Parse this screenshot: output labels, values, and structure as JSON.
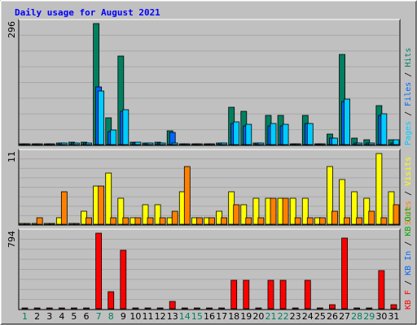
{
  "chart_data": {
    "type": "bar",
    "title": "Daily usage for August 2021",
    "x": [
      "1",
      "2",
      "3",
      "4",
      "5",
      "6",
      "7",
      "8",
      "9",
      "10",
      "11",
      "12",
      "13",
      "14",
      "15",
      "16",
      "17",
      "18",
      "19",
      "20",
      "21",
      "22",
      "23",
      "24",
      "25",
      "26",
      "27",
      "28",
      "29",
      "30",
      "31"
    ],
    "weekend_days": [
      "1",
      "7",
      "8",
      "14",
      "15",
      "21",
      "22",
      "28",
      "29"
    ],
    "panels": [
      {
        "name": "hits-files-pages",
        "ymax_label": "296",
        "ymax": 296,
        "legend": [
          {
            "text": "Pages",
            "color": "#00ccff"
          },
          {
            "text": " / ",
            "color": "#000000"
          },
          {
            "text": "Files",
            "color": "#0066ff"
          },
          {
            "text": " / ",
            "color": "#000000"
          },
          {
            "text": "Hits",
            "color": "#008060"
          }
        ],
        "series": [
          {
            "name": "Hits",
            "color": "#008060",
            "values": [
              1,
              1,
              1,
              4,
              6,
              6,
              296,
              66,
              216,
              6,
              4,
              6,
              33,
              1,
              1,
              1,
              4,
              91,
              81,
              4,
              71,
              71,
              1,
              71,
              1,
              26,
              221,
              16,
              11,
              96,
              11
            ]
          },
          {
            "name": "Files",
            "color": "#0066ff",
            "values": [
              0,
              0,
              0,
              4,
              4,
              4,
              141,
              31,
              81,
              4,
              4,
              4,
              29,
              0,
              0,
              0,
              4,
              51,
              46,
              4,
              46,
              46,
              0,
              51,
              0,
              16,
              106,
              4,
              4,
              71,
              4
            ]
          },
          {
            "name": "Pages",
            "color": "#00ccff",
            "values": [
              0,
              0,
              0,
              4,
              4,
              4,
              131,
              36,
              86,
              6,
              4,
              4,
              4,
              0,
              0,
              0,
              4,
              56,
              49,
              4,
              51,
              49,
              0,
              51,
              0,
              16,
              111,
              4,
              4,
              76,
              11
            ]
          }
        ]
      },
      {
        "name": "visits-sites",
        "ymax_label": "11",
        "ymax": 11,
        "legend": [
          {
            "text": "Sites",
            "color": "#ff8000"
          },
          {
            "text": " / ",
            "color": "#000000"
          },
          {
            "text": "Visits",
            "color": "#ffff00"
          }
        ],
        "series": [
          {
            "name": "Visits",
            "color": "#ffff00",
            "values": [
              0,
              0,
              0,
              1,
              0,
              2,
              6,
              8,
              4,
              1,
              3,
              3,
              1,
              5,
              1,
              1,
              2,
              5,
              3,
              4,
              4,
              4,
              4,
              4,
              1,
              9,
              7,
              5,
              4,
              11,
              5
            ]
          },
          {
            "name": "Sites",
            "color": "#ff8000",
            "values": [
              0,
              1,
              0,
              5,
              0,
              1,
              6,
              1,
              1,
              1,
              1,
              1,
              2,
              9,
              1,
              1,
              1,
              3,
              1,
              1,
              4,
              4,
              1,
              1,
              1,
              2,
              1,
              1,
              2,
              1,
              3
            ]
          }
        ]
      },
      {
        "name": "kbytes",
        "ymax_label": "794",
        "ymax": 794,
        "legend": [
          {
            "text": "KB F",
            "color": "#ff0000"
          },
          {
            "text": " / ",
            "color": "#000000"
          },
          {
            "text": "KB In",
            "color": "#0066ff"
          },
          {
            "text": " / ",
            "color": "#000000"
          },
          {
            "text": "KB Out",
            "color": "#00aa00"
          }
        ],
        "series": [
          {
            "name": "KB F",
            "color": "#ff0000",
            "values": [
              0,
              0,
              0,
              0,
              0,
              0,
              794,
              181,
              616,
              0,
              0,
              0,
              81,
              0,
              0,
              0,
              0,
              296,
              296,
              0,
              296,
              296,
              0,
              296,
              0,
              41,
              746,
              11,
              11,
              401,
              41
            ]
          }
        ]
      }
    ],
    "colors": {
      "background": "#c0c0c0",
      "frame": "#ffffff",
      "title": "#0000ff",
      "weekend_tick": "#00805c",
      "weekday_tick": "#000000"
    },
    "grid": true
  }
}
